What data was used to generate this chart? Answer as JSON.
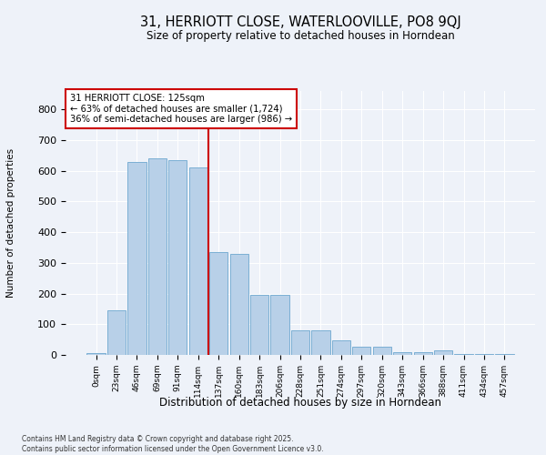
{
  "title_line1": "31, HERRIOTT CLOSE, WATERLOOVILLE, PO8 9QJ",
  "title_line2": "Size of property relative to detached houses in Horndean",
  "xlabel": "Distribution of detached houses by size in Horndean",
  "ylabel": "Number of detached properties",
  "bar_color": "#b8d0e8",
  "bar_edge_color": "#7bafd4",
  "background_color": "#eef2f9",
  "grid_color": "#ffffff",
  "annotation_text": "31 HERRIOTT CLOSE: 125sqm\n← 63% of detached houses are smaller (1,724)\n36% of semi-detached houses are larger (986) →",
  "vline_x": 5.5,
  "vline_color": "#cc0000",
  "categories": [
    "0sqm",
    "23sqm",
    "46sqm",
    "69sqm",
    "91sqm",
    "114sqm",
    "137sqm",
    "160sqm",
    "183sqm",
    "206sqm",
    "228sqm",
    "251sqm",
    "274sqm",
    "297sqm",
    "320sqm",
    "343sqm",
    "366sqm",
    "388sqm",
    "411sqm",
    "434sqm",
    "457sqm"
  ],
  "values": [
    5,
    145,
    630,
    640,
    635,
    610,
    335,
    330,
    195,
    195,
    80,
    80,
    47,
    27,
    27,
    10,
    10,
    15,
    2,
    2,
    3
  ],
  "footnote": "Contains HM Land Registry data © Crown copyright and database right 2025.\nContains public sector information licensed under the Open Government Licence v3.0.",
  "ylim": [
    0,
    860
  ],
  "yticks": [
    0,
    100,
    200,
    300,
    400,
    500,
    600,
    700,
    800
  ]
}
